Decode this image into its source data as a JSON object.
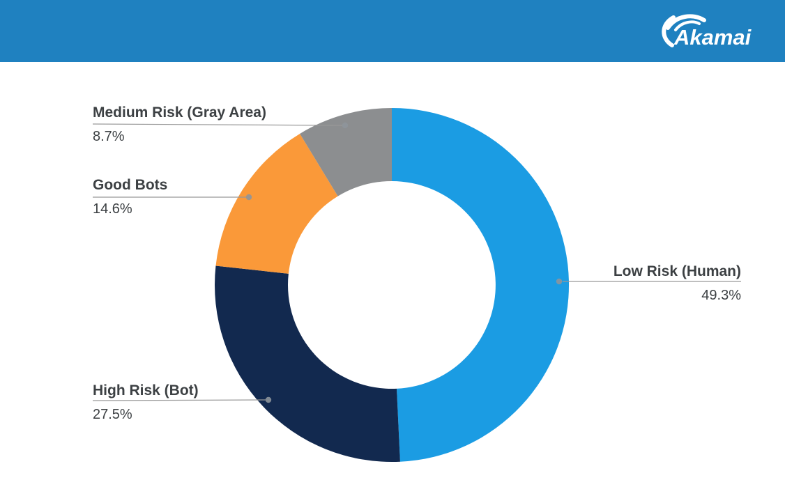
{
  "header": {
    "brand": "Akamai",
    "background": "#1F81C0"
  },
  "chart_data": {
    "type": "donut",
    "direction": "clockwise",
    "start_angle_deg": 0,
    "inner_radius_ratio": 0.587,
    "legend_position": "outside-callout-labels",
    "slices": [
      {
        "label": "Low Risk (Human)",
        "value": 49.3,
        "display": "49.3%",
        "color": "#1B9CE3"
      },
      {
        "label": "High Risk (Bot)",
        "value": 27.5,
        "display": "27.5%",
        "color": "#12294F"
      },
      {
        "label": "Good Bots",
        "value": 14.6,
        "display": "14.6%",
        "color": "#FA9939"
      },
      {
        "label": "Medium Risk (Gray Area)",
        "value": 8.7,
        "display": "8.7%",
        "color": "#8C8E90"
      }
    ]
  }
}
